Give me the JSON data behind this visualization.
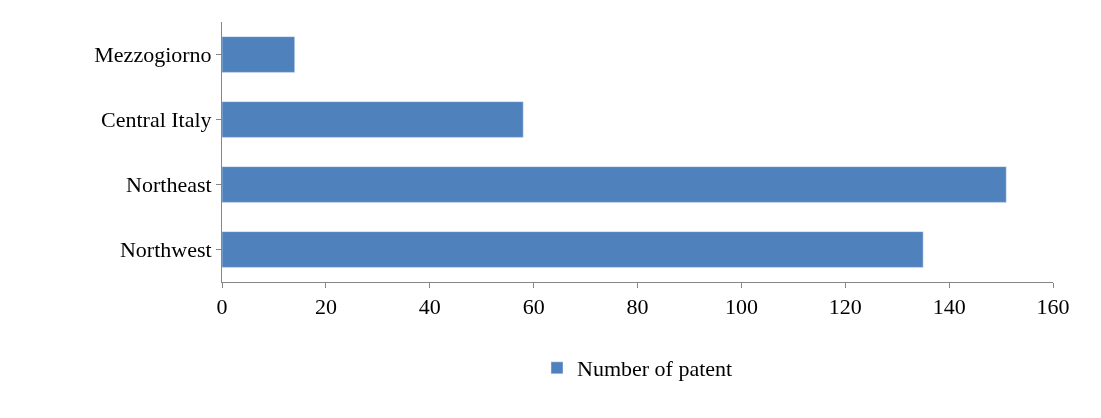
{
  "chart_data": {
    "type": "bar",
    "orientation": "horizontal",
    "categories": [
      "Mezzogiorno",
      "Central Italy",
      "Northeast",
      "Northwest"
    ],
    "series": [
      {
        "name": "Number of patent",
        "color": "#4f81bd",
        "values": [
          14,
          58,
          151,
          135
        ]
      }
    ],
    "xlim": [
      0,
      160
    ],
    "xticks": [
      0,
      20,
      40,
      60,
      80,
      100,
      120,
      140,
      160
    ],
    "legend": "bottom"
  }
}
